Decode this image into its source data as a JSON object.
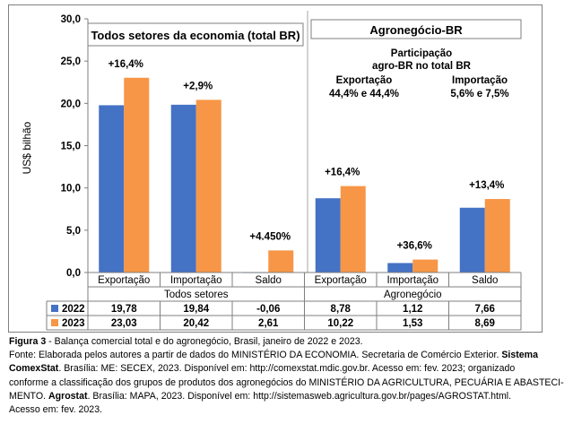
{
  "chart_data": {
    "type": "bar",
    "ylabel": "US$ bilhão",
    "ylim": [
      0,
      30
    ],
    "yticks": [
      "0,0",
      "5,0",
      "10,0",
      "15,0",
      "20,0",
      "25,0",
      "30,0"
    ],
    "yticks_values": [
      0,
      5,
      10,
      15,
      20,
      25,
      30
    ],
    "grid": false,
    "categories": [
      "Exportação",
      "Importação",
      "Saldo",
      "Exportação",
      "Importação",
      "Saldo"
    ],
    "groups": [
      {
        "label": "Todos setores",
        "span": [
          0,
          2
        ]
      },
      {
        "label": "Agronegócio",
        "span": [
          3,
          5
        ]
      }
    ],
    "series": [
      {
        "name": "2022",
        "color": "#4472c4",
        "values": [
          19.78,
          19.84,
          -0.06,
          8.78,
          1.12,
          7.66
        ],
        "labels": [
          "19,78",
          "19,84",
          "-0,06",
          "8,78",
          "1,12",
          "7,66"
        ]
      },
      {
        "name": "2023",
        "color": "#f79646",
        "values": [
          23.03,
          20.42,
          2.61,
          10.22,
          1.53,
          8.69
        ],
        "labels": [
          "23,03",
          "20,42",
          "2,61",
          "10,22",
          "1,53",
          "8,69"
        ]
      }
    ],
    "annotations": [
      "+16,4%",
      "+2,9%",
      "+4.450%",
      "+16,4%",
      "+36,6%",
      "+13,4%"
    ],
    "panel_titles": [
      "Todos setores da economia (total BR)",
      "Agronegócio-BR"
    ],
    "info_box": {
      "title_line1": "Participação",
      "title_line2": "agro-BR no total BR",
      "export_label": "Exportação",
      "export_value": "44,4% e 44,4%",
      "import_label": "Importação",
      "import_value": "5,6% e 7,5%"
    }
  },
  "caption": {
    "fig_label": "Figura 3",
    "fig_title": " - Balança comercial total e do agronegócio, Brasil, janeiro de 2022 e 2023.",
    "line2_a": "Fonte: Elaborada pelos autores a partir de dados do MINISTÉRIO DA ECONOMIA. Secretaria de Comércio Exterior. ",
    "line2_b": "Sistema",
    "line3_a": "ComexStat",
    "line3_b": ". Brasília: ME: SECEX, 2023. Disponível em: http://comexstat.mdic.gov.br. Acesso em: fev. 2023; organizado",
    "line4": "conforme a classificação dos grupos de produtos dos agronegócios do MINISTÉRIO DA AGRICULTURA, PECUÁRIA E ABASTECI-",
    "line5_a": "MENTO. ",
    "line5_b": "Agrostat",
    "line5_c": ". Brasília: MAPA, 2023. Disponível em: http://sistemasweb.agricultura.gov.br/pages/AGROSTAT.html.",
    "line6": "Acesso em: fev. 2023."
  }
}
